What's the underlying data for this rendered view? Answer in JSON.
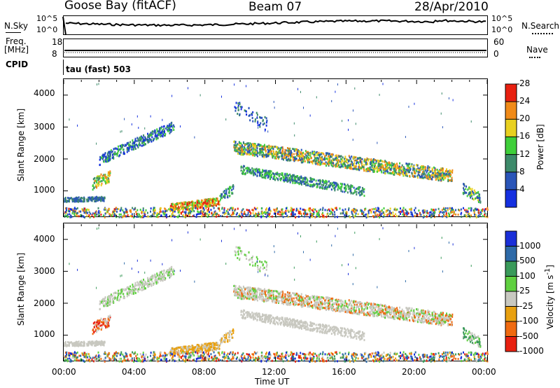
{
  "header": {
    "station": "Goose Bay (fitACF)",
    "beam": "Beam 07",
    "date": "28/Apr/2010"
  },
  "strip": {
    "nsky_label": "N.Sky",
    "nsearch_label": "N.Search",
    "noise_ticks": [
      "10^5",
      "10^0"
    ],
    "freq_label_1": "Freq.",
    "freq_label_2": "[MHz]",
    "freq_ticks": [
      "18",
      "8"
    ],
    "nave_label": "Nave",
    "nave_ticks": [
      "60",
      "0"
    ],
    "cpid_label": "CPID",
    "cpid_value": "tau (fast) 503"
  },
  "chart_data": [
    {
      "type": "heatmap",
      "name": "power",
      "ylabel": "Slant Range [km]",
      "yticks": [
        "1000",
        "2000",
        "3000",
        "4000"
      ],
      "xlim": [
        0,
        24
      ],
      "ylim": [
        200,
        4500
      ],
      "colorbar_label": "Power [dB]",
      "colorbar_ticks": [
        "4",
        "8",
        "12",
        "16",
        "20",
        "24",
        "28"
      ],
      "colors": [
        "#1530e0",
        "#2a55b8",
        "#3d8a6a",
        "#3fcf3a",
        "#e8d020",
        "#f08a18",
        "#e82010"
      ]
    },
    {
      "type": "heatmap",
      "name": "velocity",
      "ylabel": "Slant Range [km]",
      "yticks": [
        "1000",
        "2000",
        "3000",
        "4000"
      ],
      "xlim": [
        0,
        24
      ],
      "ylim": [
        200,
        4500
      ],
      "colorbar_label": "Velocity [m s^-1]",
      "colorbar_ticks": [
        "1000",
        "500",
        "100",
        "25",
        "-25",
        "-100",
        "-500",
        "-1000"
      ],
      "colors": [
        "#1a2fd8",
        "#2e6aa8",
        "#3a9a5a",
        "#60d040",
        "#c8c8c0",
        "#e8a010",
        "#f06a10",
        "#e82010"
      ]
    }
  ],
  "xaxis": {
    "ticks": [
      "00:00",
      "04:00",
      "08:00",
      "12:00",
      "16:00",
      "20:00",
      "00:00"
    ],
    "label": "Time UT"
  }
}
